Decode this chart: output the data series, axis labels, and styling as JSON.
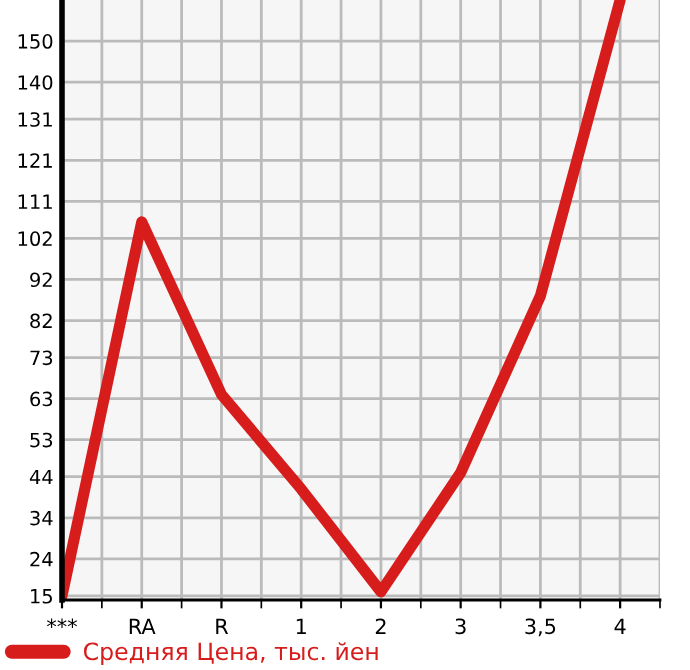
{
  "chart_data": {
    "type": "line",
    "categories": [
      "***",
      "RA",
      "R",
      "1",
      "2",
      "3",
      "3,5",
      "4"
    ],
    "series": [
      {
        "name": "Средняя Цена, тыс. йен",
        "color": "#d71c1c",
        "values": [
          15,
          106,
          64,
          41,
          16,
          45,
          88,
          160
        ]
      }
    ],
    "ylim": [
      14,
      160
    ],
    "yticks": [
      15,
      24,
      34,
      44,
      53,
      63,
      73,
      82,
      92,
      102,
      111,
      121,
      131,
      140,
      150
    ],
    "grid": true,
    "legend": "bottom left",
    "marker": "none",
    "line_style": "solid"
  }
}
